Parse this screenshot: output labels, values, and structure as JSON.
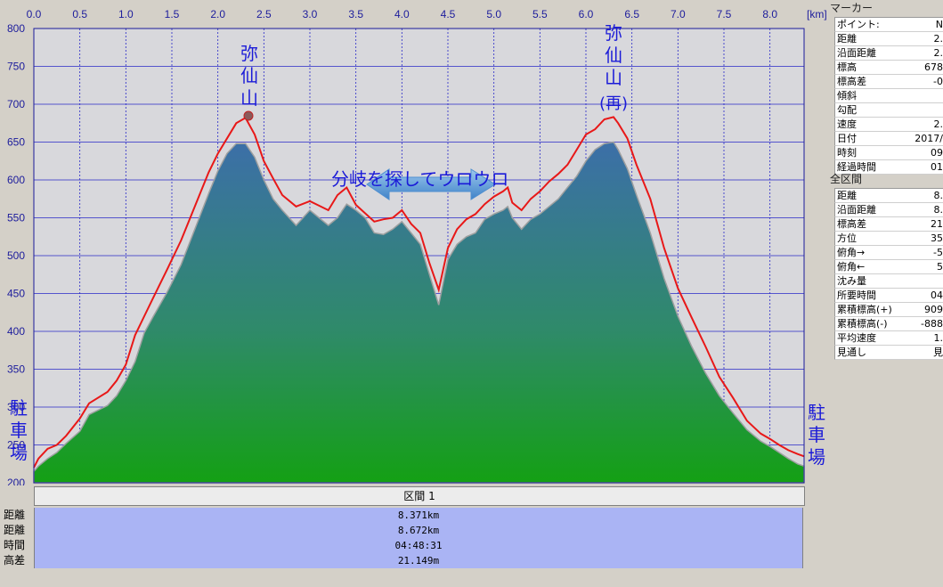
{
  "chart_data": {
    "type": "area",
    "x_unit_label": "[km]",
    "x_ticks": [
      "0.0",
      "0.5",
      "1.0",
      "1.5",
      "2.0",
      "2.5",
      "3.0",
      "3.5",
      "4.0",
      "4.5",
      "5.0",
      "5.5",
      "6.0",
      "6.5",
      "7.0",
      "7.5",
      "8.0"
    ],
    "y_ticks": [
      "800",
      "750",
      "700",
      "650",
      "600",
      "550",
      "500",
      "450",
      "400",
      "350",
      "300",
      "250",
      "200"
    ],
    "xlim": [
      0,
      8.371
    ],
    "ylim": [
      200,
      800
    ],
    "grid": true,
    "series": [
      {
        "color": "#e81818",
        "x": [
          0,
          0.05,
          0.15,
          0.25,
          0.35,
          0.5,
          0.6,
          0.8,
          0.9,
          1.0,
          1.1,
          1.2,
          1.3,
          1.45,
          1.6,
          1.75,
          1.9,
          2.0,
          2.1,
          2.2,
          2.3,
          2.4,
          2.5,
          2.6,
          2.7,
          2.85,
          3.0,
          3.1,
          3.2,
          3.3,
          3.4,
          3.5,
          3.6,
          3.7,
          3.8,
          3.9,
          4.0,
          4.1,
          4.2,
          4.3,
          4.4,
          4.5,
          4.6,
          4.7,
          4.8,
          4.9,
          5.0,
          5.1,
          5.15,
          5.2,
          5.3,
          5.4,
          5.5,
          5.6,
          5.7,
          5.8,
          5.9,
          6.0,
          6.1,
          6.2,
          6.3,
          6.35,
          6.45,
          6.55,
          6.7,
          6.85,
          7.0,
          7.15,
          7.3,
          7.45,
          7.6,
          7.75,
          7.9,
          8.0,
          8.1,
          8.2,
          8.3,
          8.371
        ],
        "values": [
          220,
          232,
          245,
          250,
          262,
          285,
          305,
          320,
          335,
          356,
          395,
          420,
          445,
          482,
          520,
          565,
          610,
          635,
          655,
          675,
          682,
          660,
          625,
          602,
          580,
          565,
          572,
          566,
          560,
          580,
          590,
          567,
          556,
          545,
          548,
          550,
          560,
          542,
          530,
          490,
          455,
          510,
          535,
          548,
          555,
          568,
          578,
          585,
          590,
          570,
          560,
          575,
          585,
          598,
          608,
          620,
          640,
          660,
          667,
          680,
          683,
          675,
          655,
          620,
          575,
          510,
          457,
          418,
          380,
          340,
          312,
          282,
          265,
          258,
          250,
          243,
          238,
          235
        ]
      },
      {
        "color": "#3a8a5a",
        "x": [
          0,
          0.05,
          0.15,
          0.25,
          0.35,
          0.5,
          0.6,
          0.8,
          0.9,
          1.0,
          1.1,
          1.2,
          1.3,
          1.45,
          1.6,
          1.75,
          1.9,
          2.0,
          2.1,
          2.2,
          2.3,
          2.4,
          2.5,
          2.6,
          2.7,
          2.85,
          3.0,
          3.1,
          3.2,
          3.3,
          3.4,
          3.5,
          3.6,
          3.7,
          3.8,
          3.9,
          4.0,
          4.1,
          4.2,
          4.3,
          4.4,
          4.5,
          4.6,
          4.7,
          4.8,
          4.9,
          5.0,
          5.1,
          5.15,
          5.2,
          5.3,
          5.4,
          5.5,
          5.6,
          5.7,
          5.8,
          5.9,
          6.0,
          6.1,
          6.2,
          6.3,
          6.35,
          6.45,
          6.55,
          6.7,
          6.85,
          7.0,
          7.15,
          7.3,
          7.45,
          7.6,
          7.75,
          7.9,
          8.0,
          8.1,
          8.2,
          8.3,
          8.371
        ],
        "values": [
          215,
          222,
          232,
          240,
          252,
          268,
          290,
          302,
          315,
          335,
          360,
          398,
          420,
          452,
          488,
          535,
          582,
          612,
          635,
          648,
          648,
          630,
          600,
          575,
          560,
          540,
          560,
          550,
          540,
          550,
          568,
          560,
          550,
          530,
          528,
          535,
          545,
          530,
          515,
          475,
          435,
          495,
          515,
          525,
          530,
          548,
          555,
          560,
          565,
          550,
          535,
          548,
          555,
          565,
          575,
          590,
          605,
          625,
          640,
          648,
          650,
          640,
          615,
          580,
          530,
          470,
          420,
          380,
          345,
          315,
          292,
          270,
          255,
          248,
          240,
          232,
          225,
          222
        ]
      }
    ],
    "annotations": {
      "peak1": "弥仙山",
      "peak2_main": "弥仙山",
      "peak2_paren": "(再)",
      "middle": "分岐を探してウロウロ",
      "start": "駐車場",
      "end": "駐車場"
    }
  },
  "table": {
    "section_header": "区間 1",
    "rows": [
      {
        "label": "距離",
        "value": "8.371km"
      },
      {
        "label": "距離",
        "value": "8.672km"
      },
      {
        "label": "時間",
        "value": "04:48:31"
      },
      {
        "label": "高差",
        "value": "21.149m"
      }
    ]
  },
  "side": {
    "marker_title": "マーカー",
    "marker": [
      {
        "k": "ポイント:",
        "v": "N"
      },
      {
        "k": "距離",
        "v": "2."
      },
      {
        "k": "沿面距離",
        "v": "2."
      },
      {
        "k": "標高",
        "v": "678"
      },
      {
        "k": "標高差",
        "v": "-0"
      },
      {
        "k": "傾斜",
        "v": ""
      },
      {
        "k": "勾配",
        "v": ""
      },
      {
        "k": "速度",
        "v": "2."
      },
      {
        "k": "日付",
        "v": "2017/"
      },
      {
        "k": "時刻",
        "v": "09"
      },
      {
        "k": "経過時間",
        "v": "01"
      }
    ],
    "all_title": "全区間",
    "all": [
      {
        "k": "距離",
        "v": "8."
      },
      {
        "k": "沿面距離",
        "v": "8."
      },
      {
        "k": "標高差",
        "v": "21"
      },
      {
        "k": "方位",
        "v": "35"
      },
      {
        "k": "俯角→",
        "v": "-5"
      },
      {
        "k": "俯角←",
        "v": "5"
      },
      {
        "k": "沈み量",
        "v": ""
      },
      {
        "k": "所要時間",
        "v": "04"
      },
      {
        "k": "累積標高(+)",
        "v": "909"
      },
      {
        "k": "累積標高(-)",
        "v": "-888"
      },
      {
        "k": "平均速度",
        "v": "1."
      },
      {
        "k": "見通し",
        "v": "見"
      }
    ]
  },
  "colors": {
    "plot_bg": "#d8d8dc",
    "grid": "#2020c8",
    "track_line": "#e81818",
    "fill_top": "#3c6fa8",
    "fill_bottom": "#14a014",
    "arrow": "#4f92d4"
  }
}
